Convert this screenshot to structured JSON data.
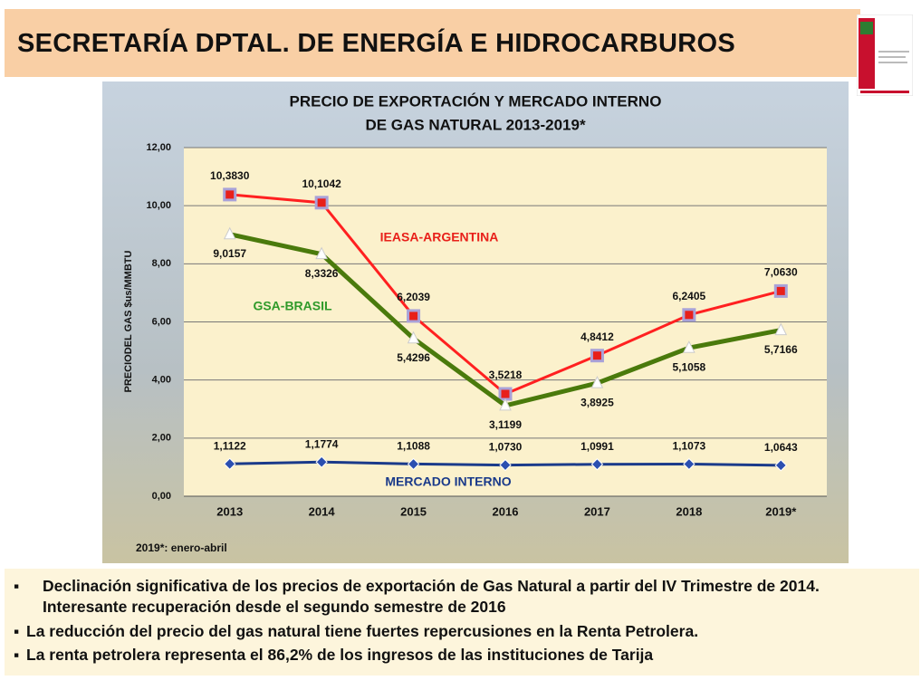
{
  "header": {
    "title": "SECRETARÍA DPTAL. DE ENERGÍA E HIDROCARBUROS"
  },
  "chart_data": {
    "type": "line",
    "title": [
      "PRECIO DE EXPORTACIÓN Y MERCADO INTERNO",
      "DE GAS NATURAL 2013-2019*"
    ],
    "y_label": "PRECIODEL GAS $us/MMBTU",
    "note": "2019*: enero-abril",
    "categories": [
      "2013",
      "2014",
      "2015",
      "2016",
      "2017",
      "2018",
      "2019*"
    ],
    "ylim": [
      0,
      12
    ],
    "yticks": [
      {
        "value": 0,
        "label": "0,00"
      },
      {
        "value": 2,
        "label": "2,00"
      },
      {
        "value": 4,
        "label": "4,00"
      },
      {
        "value": 6,
        "label": "6,00"
      },
      {
        "value": 8,
        "label": "8,00"
      },
      {
        "value": 10,
        "label": "10,00"
      },
      {
        "value": 12,
        "label": "12,00"
      }
    ],
    "grid": true,
    "series": [
      {
        "name": "IEASA-ARGENTINA",
        "color": "#ff2020",
        "values": [
          10.383,
          10.1042,
          6.2039,
          3.5218,
          4.8412,
          6.2405,
          7.063
        ],
        "value_labels": [
          "10,3830",
          "10,1042",
          "6,2039",
          "3,5218",
          "4,8412",
          "6,2405",
          "7,0630"
        ]
      },
      {
        "name": "GSA-BRASIL",
        "color": "#4a7a0c",
        "values": [
          9.0157,
          8.3326,
          5.4296,
          3.1199,
          3.8925,
          5.1058,
          5.7166
        ],
        "value_labels": [
          "9,0157",
          "8,3326",
          "5,4296",
          "3,1199",
          "3,8925",
          "5,1058",
          "5,7166"
        ]
      },
      {
        "name": "MERCADO INTERNO",
        "color": "#1a3a8a",
        "values": [
          1.1122,
          1.1774,
          1.1088,
          1.073,
          1.0991,
          1.1073,
          1.0643
        ],
        "value_labels": [
          "1,1122",
          "1,1774",
          "1,1088",
          "1,0730",
          "1,0991",
          "1,1073",
          "1,0643"
        ]
      }
    ]
  },
  "bullets": [
    "Declinación significativa de los precios de exportación de Gas Natural a partir del IV Trimestre de 2014. Interesante recuperación desde el segundo semestre de 2016",
    "La reducción del precio del gas natural tiene fuertes repercusiones en la Renta Petrolera.",
    "La renta petrolera representa el 86,2% de los ingresos de las instituciones de Tarija"
  ]
}
